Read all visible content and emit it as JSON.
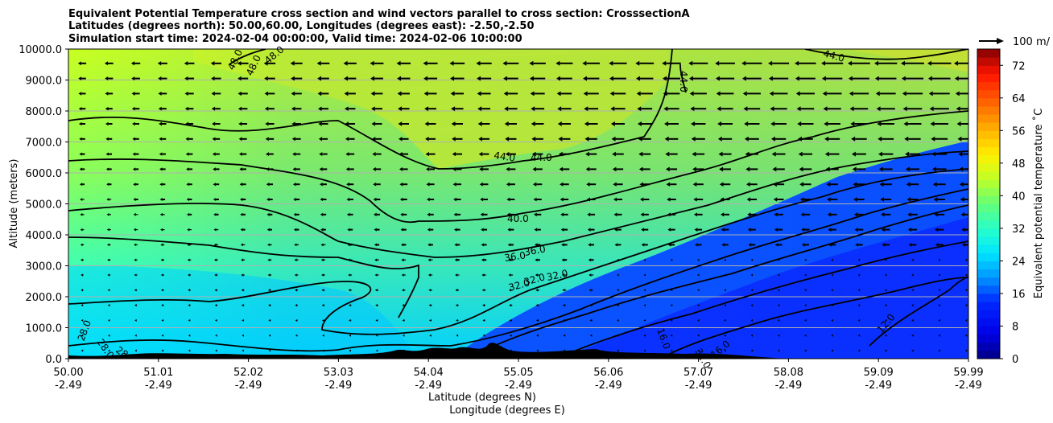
{
  "chart_data": {
    "type": "heatmap",
    "title_lines": [
      "Equivalent Potential Temperature cross section and wind vectors parallel to cross section: CrosssectionA",
      "Latitudes (degrees north): 50.00,60.00, Longitudes (degrees east): -2.50,-2.50",
      "Simulation start time: 2024-02-04 00:00:00, Valid time: 2024-02-06 10:00:00"
    ],
    "ylabel": "Altitude (meters)",
    "xlabel_lat": "Latitude (degrees N)",
    "xlabel_lon": "Longitude (degrees E)",
    "ylim": [
      0,
      10000
    ],
    "xlim": [
      50.0,
      59.99
    ],
    "yticks": [
      "0.0",
      "1000.0",
      "2000.0",
      "3000.0",
      "4000.0",
      "5000.0",
      "6000.0",
      "7000.0",
      "8000.0",
      "9000.0",
      "10000.0"
    ],
    "ytick_values": [
      0,
      1000,
      2000,
      3000,
      4000,
      5000,
      6000,
      7000,
      8000,
      9000,
      10000
    ],
    "xtick_lat": [
      "50.00",
      "51.01",
      "52.02",
      "53.03",
      "54.04",
      "55.05",
      "56.06",
      "57.07",
      "58.08",
      "59.09",
      "59.99"
    ],
    "xtick_lon": [
      "-2.49",
      "-2.49",
      "-2.49",
      "-2.49",
      "-2.49",
      "-2.49",
      "-2.49",
      "-2.49",
      "-2.49",
      "-2.49",
      "-2.49"
    ],
    "colorbar": {
      "label": "Equivalent potential temperature ˚C",
      "range": [
        0,
        76
      ],
      "ticks": [
        "0",
        "8",
        "16",
        "24",
        "32",
        "40",
        "48",
        "56",
        "64",
        "72"
      ],
      "tick_values": [
        0,
        8,
        16,
        24,
        32,
        40,
        48,
        56,
        64,
        72
      ]
    },
    "quiver_key": "100 m/",
    "contour_labels": [
      "48.0",
      "48.0",
      "48.0",
      "44.0",
      "44.0",
      "44.0",
      "44.0",
      "40.0",
      "36.0",
      "36.0",
      "32.0",
      "32.0",
      "32.0",
      "32.0",
      "28.0",
      "28.0",
      "28",
      "16.0",
      "16.0",
      "12.0"
    ],
    "contour_levels": [
      12,
      16,
      20,
      24,
      28,
      32,
      36,
      40,
      44,
      48
    ],
    "wind_direction": "southward (toward decreasing latitude), increasing with altitude and latitude"
  }
}
